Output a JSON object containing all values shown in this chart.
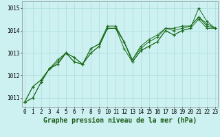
{
  "title": "Graphe pression niveau de la mer (hPa)",
  "bg_color": "#cdf0f0",
  "grid_color": "#aadddd",
  "line_color": "#1a6b1a",
  "x_min": -0.3,
  "x_max": 23.3,
  "y_min": 1010.6,
  "y_max": 1015.3,
  "yticks": [
    1011,
    1012,
    1013,
    1014,
    1015
  ],
  "xticks": [
    0,
    1,
    2,
    3,
    4,
    5,
    6,
    7,
    8,
    9,
    10,
    11,
    12,
    13,
    14,
    15,
    16,
    17,
    18,
    19,
    20,
    21,
    22,
    23
  ],
  "series": [
    [
      1010.8,
      1011.0,
      1011.7,
      1012.3,
      1012.5,
      1013.0,
      1012.6,
      1012.5,
      1013.0,
      1013.3,
      1014.1,
      1014.1,
      1013.5,
      1012.6,
      1013.1,
      1013.3,
      1013.5,
      1014.0,
      1013.8,
      1014.0,
      1014.1,
      1014.5,
      1014.1,
      1014.1
    ],
    [
      1010.8,
      1011.0,
      1011.7,
      1012.3,
      1012.5,
      1013.0,
      1012.6,
      1012.5,
      1013.0,
      1013.3,
      1014.1,
      1014.1,
      1013.2,
      1012.6,
      1013.1,
      1013.3,
      1013.5,
      1014.0,
      1013.8,
      1014.0,
      1014.1,
      1015.0,
      1014.4,
      1014.1
    ],
    [
      1010.8,
      1011.5,
      1011.8,
      1012.3,
      1012.6,
      1013.0,
      1012.8,
      1012.5,
      1013.2,
      1013.4,
      1014.1,
      1014.1,
      1013.5,
      1012.7,
      1013.2,
      1013.5,
      1013.7,
      1014.1,
      1014.0,
      1014.1,
      1014.2,
      1014.6,
      1014.2,
      1014.1
    ],
    [
      1010.8,
      1011.5,
      1011.8,
      1012.3,
      1012.7,
      1013.0,
      1012.8,
      1012.5,
      1013.2,
      1013.4,
      1014.2,
      1014.2,
      1013.5,
      1012.7,
      1013.3,
      1013.6,
      1013.8,
      1014.1,
      1014.1,
      1014.2,
      1014.2,
      1014.6,
      1014.3,
      1014.1
    ]
  ],
  "tick_fontsize": 5.5,
  "xlabel_fontsize": 7.0
}
